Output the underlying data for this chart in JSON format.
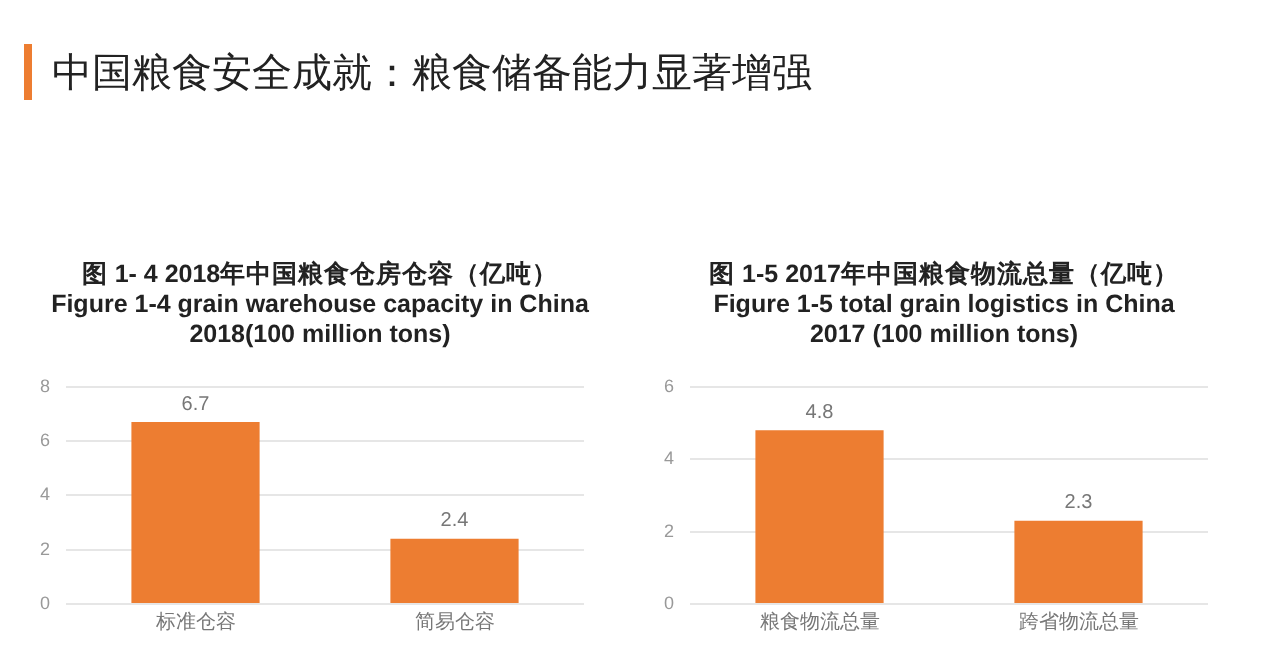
{
  "chart_data": [
    {
      "type": "bar",
      "title": "图 1- 4 2018年中国粮食仓房仓容（亿吨）\nFigure 1-4 grain warehouse capacity  in China\n2018(100 million tons)",
      "annotations": [
        "中国粮食安全成就：粮食储备能力显著增强"
      ],
      "categories": [
        "标准仓容",
        "简易仓容"
      ],
      "values": [
        6.7,
        2.4
      ],
      "color": "#ed7d31",
      "ylim": [
        0,
        8
      ],
      "yticks": [
        0,
        2,
        4,
        6,
        8
      ],
      "grid": "y",
      "data_labels": true
    },
    {
      "type": "bar",
      "title": "图 1-5 2017年中国粮食物流总量（亿吨）\nFigure 1-5 total grain logistics in China\n2017 (100 million tons)",
      "categories": [
        "粮食物流总量",
        "跨省物流总量"
      ],
      "values": [
        4.8,
        2.3
      ],
      "color": "#ed7d31",
      "ylim": [
        0,
        6
      ],
      "yticks": [
        0,
        2,
        4,
        6
      ],
      "grid": "y",
      "data_labels": true
    }
  ]
}
